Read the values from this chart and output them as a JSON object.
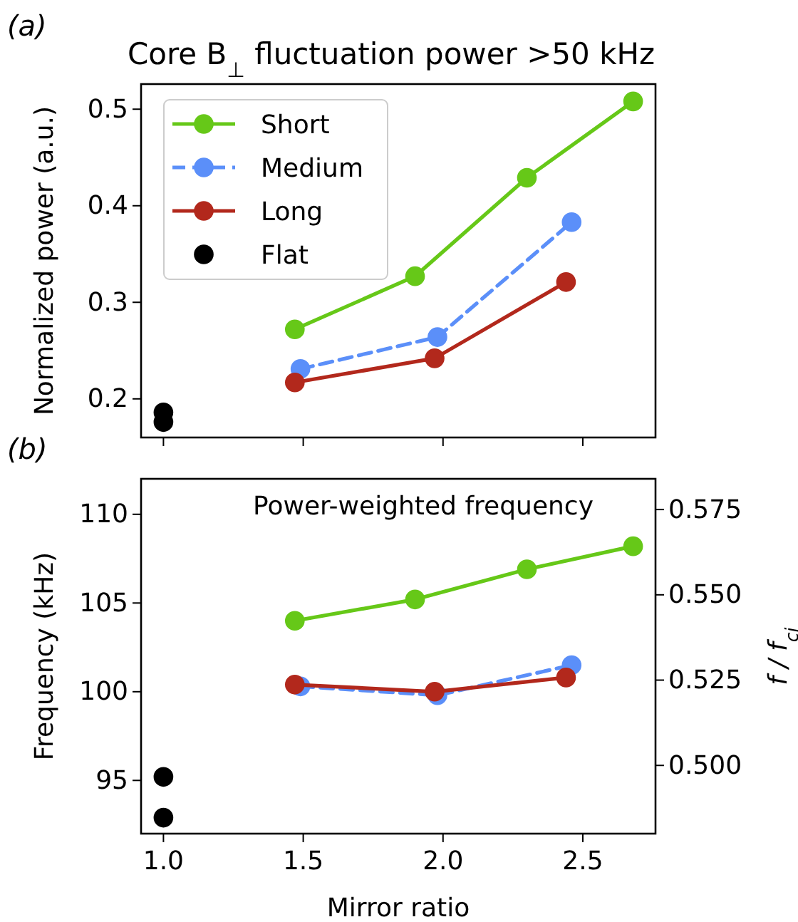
{
  "chart_data": [
    {
      "type": "line",
      "title": "Core B$_{⊥}$ fluctuation power >50 kHz",
      "ylabel": "Normalized power (a.u.)",
      "annotations": [
        "(a)"
      ],
      "xlim": [
        0.92,
        2.76
      ],
      "ylim": [
        0.16,
        0.526
      ],
      "yticks": [
        0.2,
        0.3,
        0.4,
        0.5
      ],
      "tick_labels": "y",
      "legend": "top left",
      "marker": "circle",
      "series": [
        {
          "name": "Short",
          "color": "#66c818",
          "line_style": "solid",
          "x": [
            1.47,
            1.9,
            2.3,
            2.68
          ],
          "values": [
            0.272,
            0.327,
            0.429,
            0.508
          ]
        },
        {
          "name": "Medium",
          "color": "#5b8ff9",
          "line_style": "dashed",
          "x": [
            1.49,
            1.98,
            2.46
          ],
          "values": [
            0.231,
            0.264,
            0.383
          ]
        },
        {
          "name": "Long",
          "color": "#b2281c",
          "line_style": "solid",
          "x": [
            1.47,
            1.97,
            2.44
          ],
          "values": [
            0.217,
            0.242,
            0.321
          ]
        },
        {
          "name": "Flat",
          "type": "scatter",
          "color": "#000000",
          "x": [
            1.0,
            1.0
          ],
          "values": [
            0.186,
            0.176
          ]
        }
      ]
    },
    {
      "type": "line",
      "title": "Power-weighted frequency",
      "xlabel": "Mirror ratio",
      "ylabel": "Frequency (kHz)",
      "y2label": "f / f$_{ci}$",
      "annotations": [
        "(b)"
      ],
      "xlim": [
        0.92,
        2.76
      ],
      "xticks": [
        {
          "value": 1,
          "label": "1.0"
        },
        1.5,
        {
          "value": 2,
          "label": "2.0"
        },
        2.5
      ],
      "ylim": [
        92.0,
        112.0
      ],
      "yticks": [
        95,
        100,
        105,
        110
      ],
      "y2lim": [
        0.48,
        0.584
      ],
      "y2ticks": [
        {
          "value": 0.5,
          "label": "0.500"
        },
        {
          "value": 0.525,
          "label": "0.525"
        },
        {
          "value": 0.55,
          "label": "0.550"
        },
        {
          "value": 0.575,
          "label": "0.575"
        }
      ],
      "marker": "circle",
      "series": [
        {
          "color": "#66c818",
          "line_style": "solid",
          "x": [
            1.47,
            1.9,
            2.3,
            2.68
          ],
          "values": [
            104.0,
            105.2,
            106.9,
            108.2
          ]
        },
        {
          "color": "#5b8ff9",
          "line_style": "dashed",
          "x": [
            1.49,
            1.98,
            2.46
          ],
          "values": [
            100.3,
            99.8,
            101.5
          ]
        },
        {
          "color": "#b2281c",
          "line_style": "solid",
          "x": [
            1.47,
            1.97,
            2.44
          ],
          "values": [
            100.4,
            100.0,
            100.8
          ]
        },
        {
          "type": "scatter",
          "color": "#000000",
          "x": [
            1.0,
            1.0
          ],
          "values": [
            95.2,
            92.9
          ]
        }
      ]
    }
  ]
}
